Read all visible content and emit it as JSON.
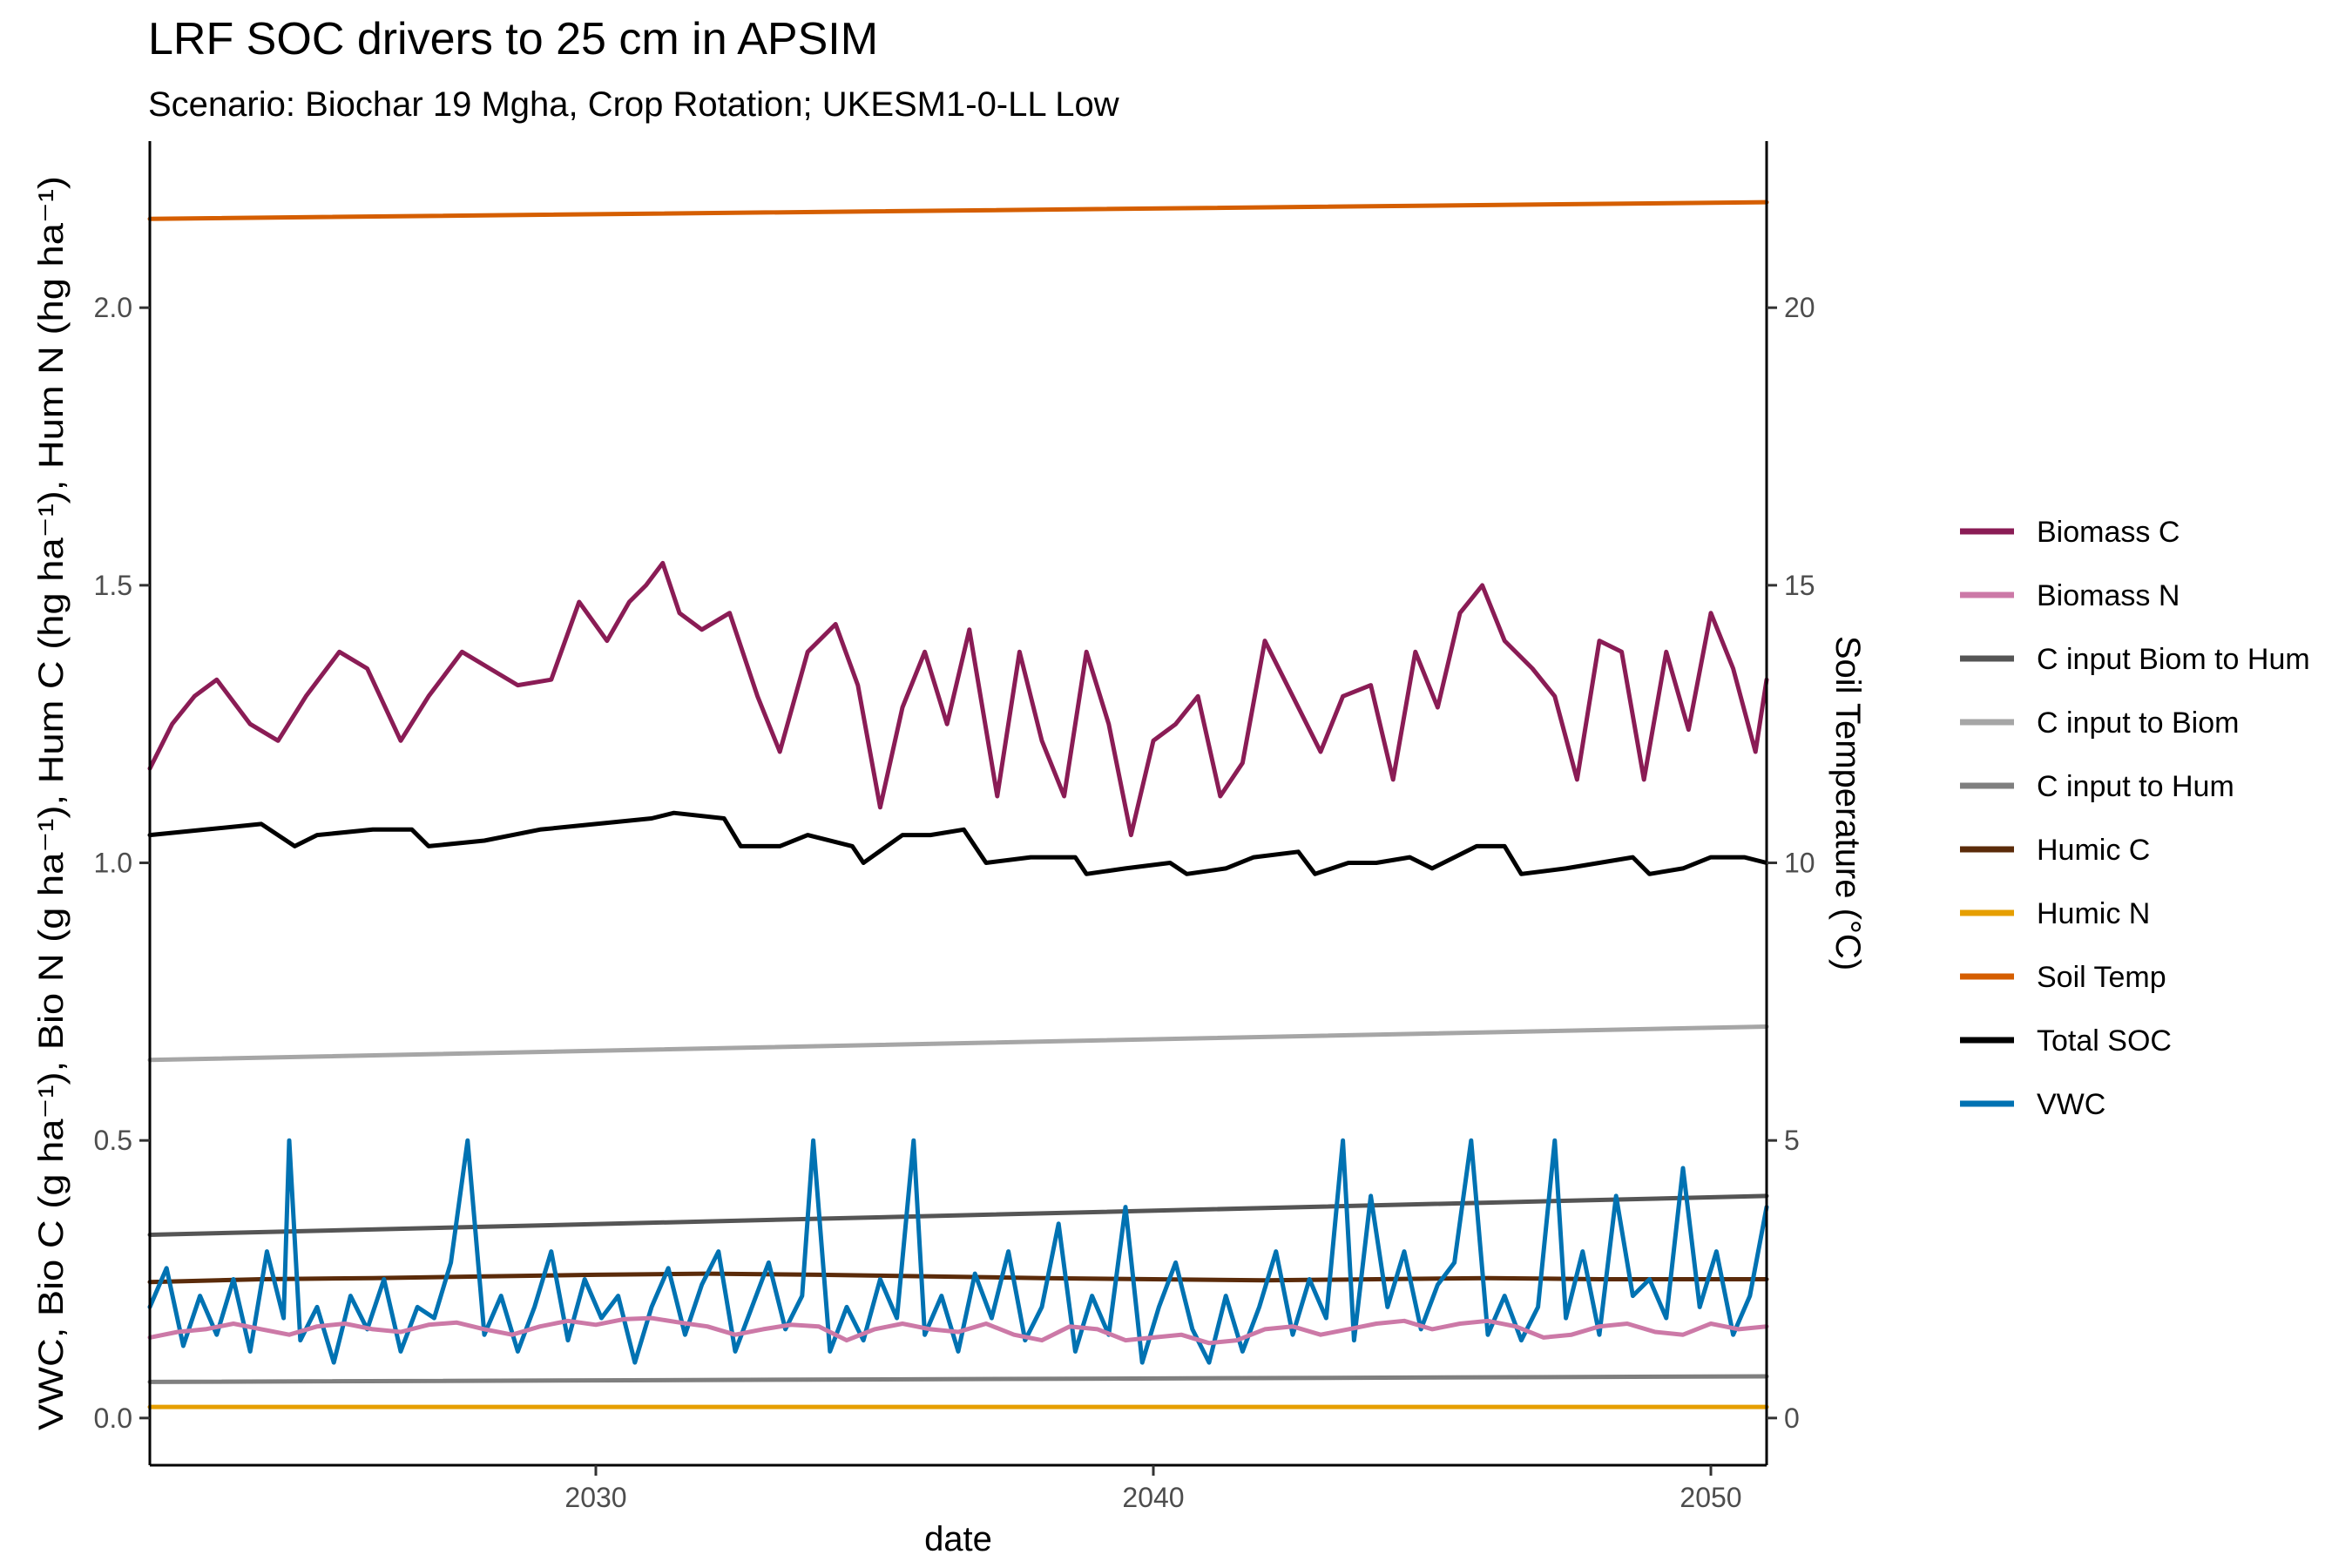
{
  "chart_data": {
    "type": "line",
    "title": "LRF SOC drivers to 25 cm in APSIM",
    "subtitle": "Scenario: Biochar 19 Mgha, Crop Rotation; UKESM1-0-LL Low",
    "xlabel": "date",
    "ylabel_left": "VWC, Bio C (g ha⁻¹), Bio N (g ha⁻¹), Hum C (hg ha⁻¹), Hum N (hg ha⁻¹)",
    "ylabel_right": "Soil Temperature (°C)",
    "xlim": [
      2022,
      2051
    ],
    "ylim_left": [
      -0.085,
      2.3
    ],
    "ylim_right": [
      -0.85,
      23.0
    ],
    "x_ticks": [
      2030,
      2040,
      2050
    ],
    "y_ticks_left": [
      0.0,
      0.5,
      1.0,
      1.5,
      2.0
    ],
    "y_tick_labels_left": [
      "0.0",
      "0.5",
      "1.0",
      "1.5",
      "2.0"
    ],
    "y_ticks_right": [
      0,
      5,
      10,
      15,
      20
    ],
    "y_tick_labels_right": [
      "0",
      "5",
      "10",
      "15",
      "20"
    ],
    "grid": false,
    "legend_position": "right",
    "series": [
      {
        "name": "Biomass C",
        "color": "#8a1c55",
        "axis": "left",
        "x": [
          2022.0,
          2022.4,
          2022.8,
          2023.2,
          2023.8,
          2024.3,
          2024.8,
          2025.4,
          2025.9,
          2026.5,
          2027.0,
          2027.6,
          2028.1,
          2028.6,
          2029.2,
          2029.7,
          2030.2,
          2030.6,
          2030.9,
          2031.2,
          2031.5,
          2031.9,
          2032.4,
          2032.9,
          2033.3,
          2033.8,
          2034.3,
          2034.7,
          2035.1,
          2035.5,
          2035.9,
          2036.3,
          2036.7,
          2037.2,
          2037.6,
          2038.0,
          2038.4,
          2038.8,
          2039.2,
          2039.6,
          2040.0,
          2040.4,
          2040.8,
          2041.2,
          2041.6,
          2042.0,
          2042.5,
          2043.0,
          2043.4,
          2043.9,
          2044.3,
          2044.7,
          2045.1,
          2045.5,
          2045.9,
          2046.3,
          2046.8,
          2047.2,
          2047.6,
          2048.0,
          2048.4,
          2048.8,
          2049.2,
          2049.6,
          2050.0,
          2050.4,
          2050.8,
          2051.0
        ],
        "y": [
          1.17,
          1.25,
          1.3,
          1.33,
          1.25,
          1.22,
          1.3,
          1.38,
          1.35,
          1.22,
          1.3,
          1.38,
          1.35,
          1.32,
          1.33,
          1.47,
          1.4,
          1.47,
          1.5,
          1.54,
          1.45,
          1.42,
          1.45,
          1.3,
          1.2,
          1.38,
          1.43,
          1.32,
          1.1,
          1.28,
          1.38,
          1.25,
          1.42,
          1.12,
          1.38,
          1.22,
          1.12,
          1.38,
          1.25,
          1.05,
          1.22,
          1.25,
          1.3,
          1.12,
          1.18,
          1.4,
          1.3,
          1.2,
          1.3,
          1.32,
          1.15,
          1.38,
          1.28,
          1.45,
          1.5,
          1.4,
          1.35,
          1.3,
          1.15,
          1.4,
          1.38,
          1.15,
          1.38,
          1.24,
          1.45,
          1.35,
          1.2,
          1.33
        ]
      },
      {
        "name": "Biomass N",
        "color": "#cc79a7",
        "axis": "left",
        "x": [
          2022.0,
          2022.5,
          2023.0,
          2023.5,
          2024.0,
          2024.5,
          2025.0,
          2025.5,
          2026.0,
          2026.5,
          2027.0,
          2027.5,
          2028.0,
          2028.5,
          2029.0,
          2029.5,
          2030.0,
          2030.5,
          2031.0,
          2031.5,
          2032.0,
          2032.5,
          2033.0,
          2033.5,
          2034.0,
          2034.5,
          2035.0,
          2035.5,
          2036.0,
          2036.5,
          2037.0,
          2037.5,
          2038.0,
          2038.5,
          2039.0,
          2039.5,
          2040.0,
          2040.5,
          2041.0,
          2041.5,
          2042.0,
          2042.5,
          2043.0,
          2043.5,
          2044.0,
          2044.5,
          2045.0,
          2045.5,
          2046.0,
          2046.5,
          2047.0,
          2047.5,
          2048.0,
          2048.5,
          2049.0,
          2049.5,
          2050.0,
          2050.5,
          2051.0
        ],
        "y": [
          0.145,
          0.155,
          0.16,
          0.17,
          0.16,
          0.15,
          0.165,
          0.17,
          0.16,
          0.155,
          0.168,
          0.172,
          0.16,
          0.15,
          0.165,
          0.175,
          0.168,
          0.178,
          0.18,
          0.172,
          0.165,
          0.15,
          0.16,
          0.168,
          0.165,
          0.14,
          0.16,
          0.17,
          0.16,
          0.155,
          0.17,
          0.15,
          0.14,
          0.165,
          0.16,
          0.14,
          0.145,
          0.15,
          0.135,
          0.14,
          0.16,
          0.165,
          0.15,
          0.16,
          0.17,
          0.175,
          0.16,
          0.17,
          0.175,
          0.165,
          0.145,
          0.15,
          0.165,
          0.17,
          0.155,
          0.15,
          0.17,
          0.16,
          0.165
        ]
      },
      {
        "name": "C input Biom to Hum",
        "color": "#555555",
        "axis": "left",
        "x": [
          2022.0,
          2051.0
        ],
        "y": [
          0.33,
          0.4
        ]
      },
      {
        "name": "C input to Biom",
        "color": "#a6a6a6",
        "axis": "left",
        "x": [
          2022.0,
          2051.0
        ],
        "y": [
          0.645,
          0.705
        ]
      },
      {
        "name": "C input to Hum",
        "color": "#7f7f7f",
        "axis": "left",
        "x": [
          2022.0,
          2051.0
        ],
        "y": [
          0.065,
          0.075
        ]
      },
      {
        "name": "Humic C",
        "color": "#5b2b0a",
        "axis": "left",
        "x": [
          2022.0,
          2024.0,
          2026.0,
          2028.0,
          2030.0,
          2032.0,
          2034.0,
          2036.0,
          2038.0,
          2040.0,
          2042.0,
          2044.0,
          2046.0,
          2048.0,
          2050.0,
          2051.0
        ],
        "y": [
          0.245,
          0.25,
          0.252,
          0.255,
          0.258,
          0.26,
          0.258,
          0.255,
          0.252,
          0.25,
          0.248,
          0.25,
          0.252,
          0.25,
          0.25,
          0.25
        ]
      },
      {
        "name": "Humic N",
        "color": "#e69f00",
        "axis": "left",
        "x": [
          2022.0,
          2051.0
        ],
        "y": [
          0.02,
          0.02
        ]
      },
      {
        "name": "Soil Temp",
        "color": "#d55e00",
        "axis": "right",
        "x": [
          2022.0,
          2051.0
        ],
        "y": [
          21.6,
          21.9
        ]
      },
      {
        "name": "Total SOC",
        "color": "#000000",
        "axis": "left",
        "x": [
          2022.0,
          2023.0,
          2024.0,
          2024.6,
          2025.0,
          2026.0,
          2026.7,
          2027.0,
          2028.0,
          2029.0,
          2030.0,
          2031.0,
          2031.4,
          2032.3,
          2032.6,
          2033.3,
          2033.8,
          2034.6,
          2034.8,
          2035.5,
          2036.0,
          2036.6,
          2037.0,
          2037.8,
          2038.6,
          2038.8,
          2039.5,
          2040.3,
          2040.6,
          2041.3,
          2041.8,
          2042.6,
          2042.9,
          2043.5,
          2044.0,
          2044.6,
          2045.0,
          2045.8,
          2046.3,
          2046.6,
          2047.4,
          2048.0,
          2048.6,
          2048.9,
          2049.5,
          2050.0,
          2050.6,
          2051.0
        ],
        "y": [
          1.05,
          1.06,
          1.07,
          1.03,
          1.05,
          1.06,
          1.06,
          1.03,
          1.04,
          1.06,
          1.07,
          1.08,
          1.09,
          1.08,
          1.03,
          1.03,
          1.05,
          1.03,
          1.0,
          1.05,
          1.05,
          1.06,
          1.0,
          1.01,
          1.01,
          0.98,
          0.99,
          1.0,
          0.98,
          0.99,
          1.01,
          1.02,
          0.98,
          1.0,
          1.0,
          1.01,
          0.99,
          1.03,
          1.03,
          0.98,
          0.99,
          1.0,
          1.01,
          0.98,
          0.99,
          1.01,
          1.01,
          1.0
        ]
      },
      {
        "name": "VWC",
        "color": "#0072b2",
        "axis": "left",
        "x": [
          2022.0,
          2022.3,
          2022.6,
          2022.9,
          2023.2,
          2023.5,
          2023.8,
          2024.1,
          2024.4,
          2024.5,
          2024.7,
          2025.0,
          2025.3,
          2025.6,
          2025.9,
          2026.2,
          2026.5,
          2026.8,
          2027.1,
          2027.4,
          2027.7,
          2028.0,
          2028.3,
          2028.6,
          2028.9,
          2029.2,
          2029.5,
          2029.8,
          2030.1,
          2030.4,
          2030.7,
          2031.0,
          2031.3,
          2031.6,
          2031.9,
          2032.2,
          2032.5,
          2032.8,
          2033.1,
          2033.4,
          2033.7,
          2033.9,
          2034.2,
          2034.5,
          2034.8,
          2035.1,
          2035.4,
          2035.7,
          2035.9,
          2036.2,
          2036.5,
          2036.8,
          2037.1,
          2037.4,
          2037.7,
          2038.0,
          2038.3,
          2038.6,
          2038.9,
          2039.2,
          2039.5,
          2039.8,
          2040.1,
          2040.4,
          2040.7,
          2041.0,
          2041.3,
          2041.6,
          2041.9,
          2042.2,
          2042.5,
          2042.8,
          2043.1,
          2043.4,
          2043.6,
          2043.9,
          2044.2,
          2044.5,
          2044.8,
          2045.1,
          2045.4,
          2045.7,
          2046.0,
          2046.3,
          2046.6,
          2046.9,
          2047.2,
          2047.4,
          2047.7,
          2048.0,
          2048.3,
          2048.6,
          2048.9,
          2049.2,
          2049.5,
          2049.8,
          2050.1,
          2050.4,
          2050.7,
          2051.0
        ],
        "y": [
          0.2,
          0.27,
          0.13,
          0.22,
          0.15,
          0.25,
          0.12,
          0.3,
          0.18,
          0.5,
          0.14,
          0.2,
          0.1,
          0.22,
          0.16,
          0.25,
          0.12,
          0.2,
          0.18,
          0.28,
          0.5,
          0.15,
          0.22,
          0.12,
          0.2,
          0.3,
          0.14,
          0.25,
          0.18,
          0.22,
          0.1,
          0.2,
          0.27,
          0.15,
          0.24,
          0.3,
          0.12,
          0.2,
          0.28,
          0.16,
          0.22,
          0.5,
          0.12,
          0.2,
          0.14,
          0.25,
          0.18,
          0.5,
          0.15,
          0.22,
          0.12,
          0.26,
          0.18,
          0.3,
          0.14,
          0.2,
          0.35,
          0.12,
          0.22,
          0.15,
          0.38,
          0.1,
          0.2,
          0.28,
          0.16,
          0.1,
          0.22,
          0.12,
          0.2,
          0.3,
          0.15,
          0.25,
          0.18,
          0.5,
          0.14,
          0.4,
          0.2,
          0.3,
          0.16,
          0.24,
          0.28,
          0.5,
          0.15,
          0.22,
          0.14,
          0.2,
          0.5,
          0.18,
          0.3,
          0.15,
          0.4,
          0.22,
          0.25,
          0.18,
          0.45,
          0.2,
          0.3,
          0.15,
          0.22,
          0.38
        ]
      }
    ]
  }
}
